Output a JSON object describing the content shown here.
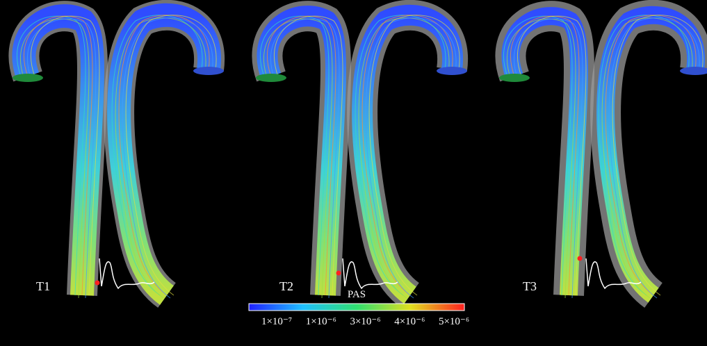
{
  "panels": [
    {
      "label": "T1"
    },
    {
      "label": "T2"
    },
    {
      "label": "T3"
    }
  ],
  "colorbar": {
    "title": "PAS",
    "labels": [
      "1×10⁻⁷",
      "1×10⁻⁶",
      "3×10⁻⁶",
      "4×10⁻⁶",
      "5×10⁻⁶"
    ]
  }
}
